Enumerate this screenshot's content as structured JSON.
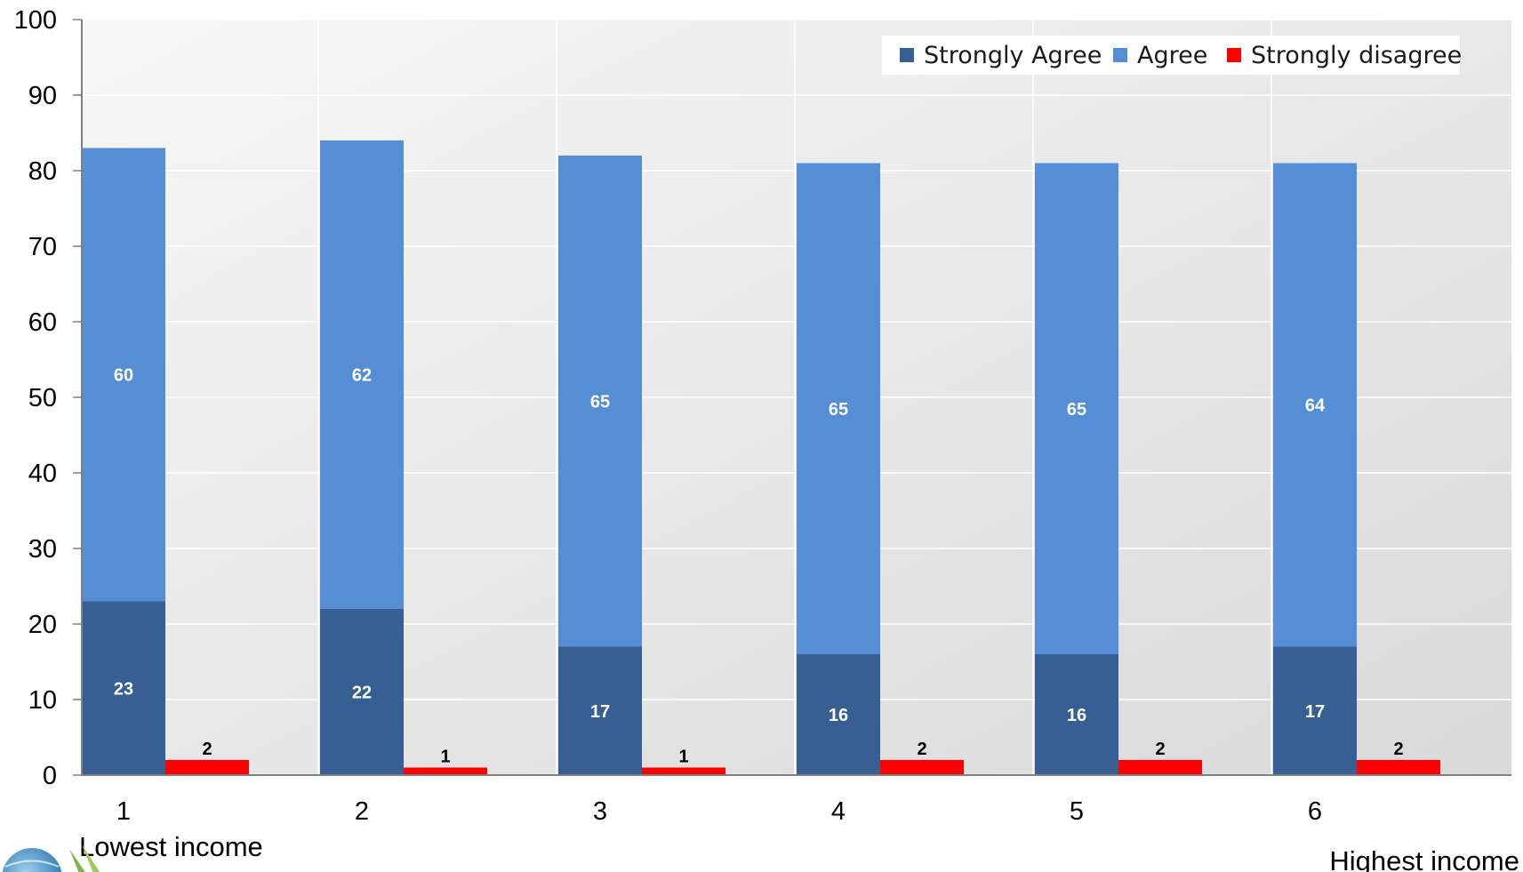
{
  "chart_data": {
    "type": "bar",
    "stacked": true,
    "categories": [
      "1",
      "2",
      "3",
      "4",
      "5",
      "6"
    ],
    "series": [
      {
        "name": "Strongly Agree",
        "color": "#375f93",
        "stack": "agree",
        "values": [
          23,
          22,
          17,
          16,
          16,
          17
        ]
      },
      {
        "name": "Agree",
        "color": "#558ed5",
        "stack": "agree",
        "values": [
          60,
          62,
          65,
          65,
          65,
          64
        ]
      },
      {
        "name": "Strongly disagree",
        "color": "#ff0000",
        "stack": "disagree",
        "values": [
          2,
          1,
          1,
          2,
          2,
          2
        ]
      }
    ],
    "ylim": [
      0,
      100
    ],
    "yticks": [
      0,
      10,
      20,
      30,
      40,
      50,
      60,
      70,
      80,
      90,
      100
    ],
    "grid": true,
    "legend_position": "top-right",
    "axis_notes": {
      "left": "Lowest income",
      "right": "Highest income"
    }
  },
  "logo": {
    "name": "globe-logo"
  }
}
